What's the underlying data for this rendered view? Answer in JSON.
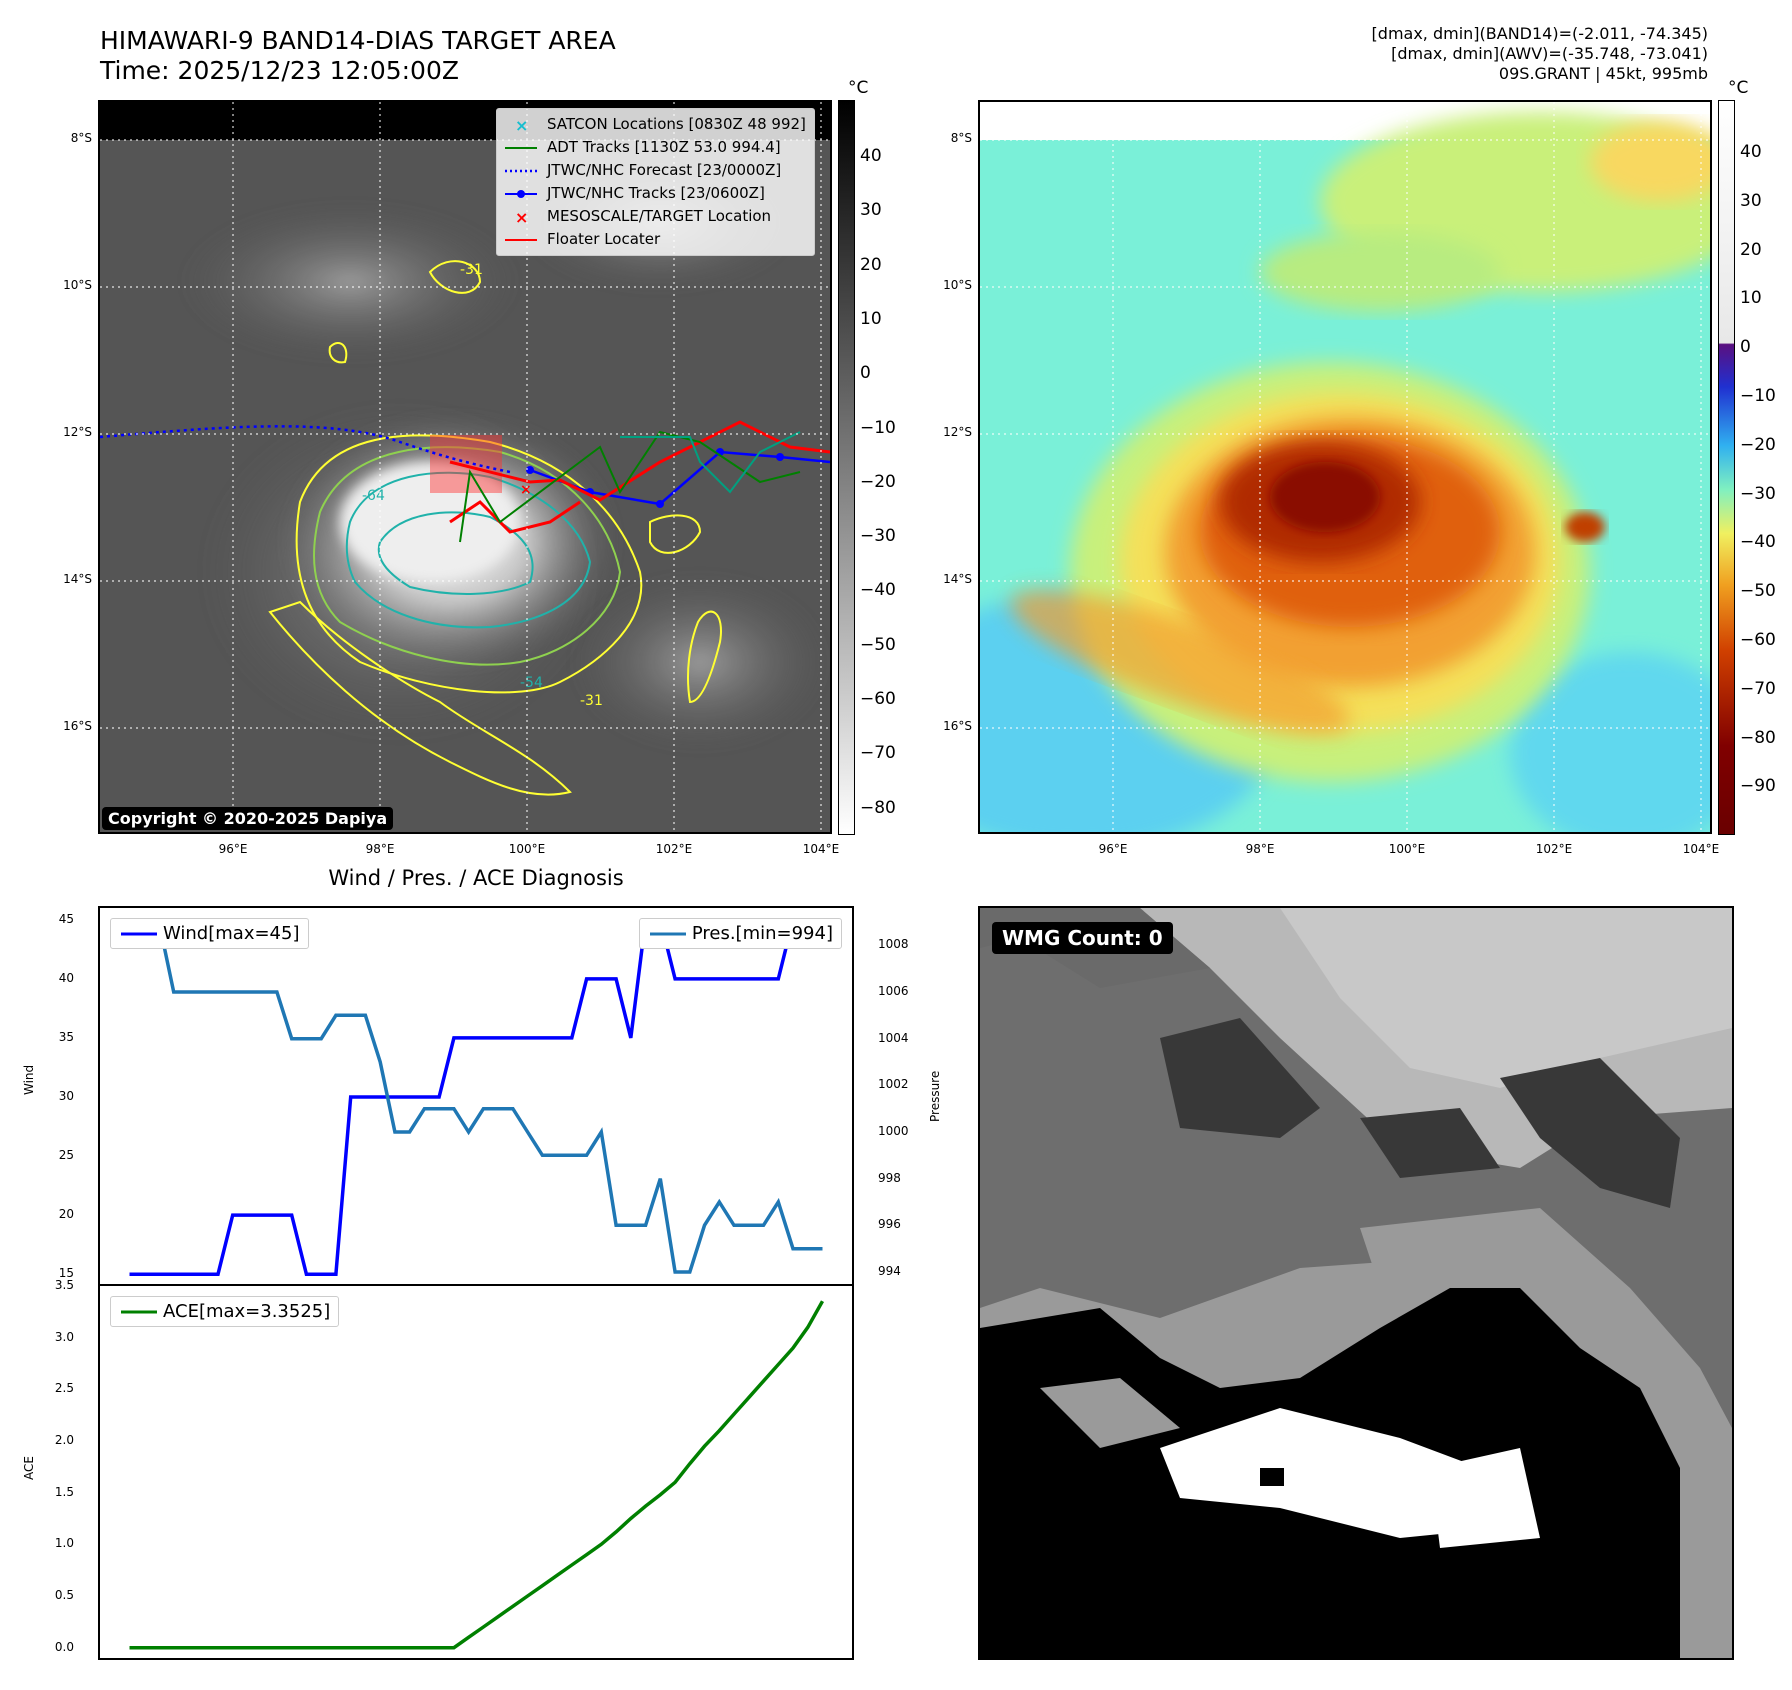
{
  "header": {
    "title_line1": "HIMAWARI-9 BAND14-DIAS TARGET AREA",
    "title_line2": "Time: 2025/12/23 12:05:00Z",
    "info_line1": "[dmax, dmin](BAND14)=(-2.011, -74.345)",
    "info_line2": "[dmax, dmin](AWV)=(-35.748, -73.041)",
    "info_line3": "09S.GRANT | 45kt, 995mb"
  },
  "map": {
    "lat_labels": [
      "8°S",
      "10°S",
      "12°S",
      "14°S",
      "16°S"
    ],
    "lon_labels": [
      "96°E",
      "98°E",
      "100°E",
      "102°E",
      "104°E"
    ],
    "copyright": "Copyright © 2020-2025 Dapiya",
    "unit": "°C",
    "colorbar1_ticks": [
      "40",
      "30",
      "20",
      "10",
      "0",
      "−10",
      "−20",
      "−30",
      "−40",
      "−50",
      "−60",
      "−70",
      "−80"
    ],
    "colorbar2_ticks": [
      "40",
      "30",
      "20",
      "10",
      "0",
      "−10",
      "−20",
      "−30",
      "−40",
      "−50",
      "−60",
      "−70",
      "−80",
      "−90"
    ],
    "contour_labels": [
      "-64",
      "-31",
      "-54",
      "-31"
    ],
    "legend": [
      {
        "label": "SATCON Locations [0830Z 48 992]",
        "color": "#17becf"
      },
      {
        "label": "ADT Tracks [1130Z 53.0 994.4]",
        "color": "#008000"
      },
      {
        "label": "JTWC/NHC Forecast [23/0000Z]",
        "color": "#0000ff"
      },
      {
        "label": "JTWC/NHC Tracks [23/0600Z]",
        "color": "#0000ff"
      },
      {
        "label": "MESOSCALE/TARGET Location",
        "color": "#ff0000"
      },
      {
        "label": "Floater Locater",
        "color": "#ff0000"
      }
    ]
  },
  "wmg": {
    "badge": "WMG Count: 0"
  },
  "chart_data": [
    {
      "type": "line",
      "title": "Wind / Pres. / ACE Diagnosis",
      "ylabel": "Wind",
      "ylabel_right": "Pressure",
      "ylim": [
        14,
        46
      ],
      "ylim_right": [
        993.4,
        1009.6
      ],
      "y_ticks": [
        "45",
        "40",
        "35",
        "30",
        "25",
        "20",
        "15"
      ],
      "y_ticks_right": [
        "1008",
        "1006",
        "1004",
        "1002",
        "1000",
        "998",
        "996",
        "994"
      ],
      "x": [
        0,
        1,
        2,
        3,
        4,
        5,
        6,
        7,
        8,
        9,
        10,
        11,
        12,
        13,
        14,
        15,
        16,
        17,
        18,
        19,
        20,
        21,
        22,
        23,
        24,
        25,
        26,
        27,
        28,
        29,
        30,
        31,
        32,
        33,
        34,
        35,
        36,
        37,
        38,
        39,
        40,
        41,
        42,
        43,
        44,
        45,
        46,
        47
      ],
      "series": [
        {
          "name": "Wind[max=45]",
          "color": "#0000ff",
          "values": [
            15,
            15,
            15,
            15,
            15,
            15,
            15,
            20,
            20,
            20,
            20,
            20,
            15,
            15,
            15,
            30,
            30,
            30,
            30,
            30,
            30,
            30,
            35,
            35,
            35,
            35,
            35,
            35,
            35,
            35,
            35,
            40,
            40,
            40,
            35,
            45,
            45,
            40,
            40,
            40,
            40,
            40,
            40,
            40,
            40,
            45,
            45,
            45
          ],
          "axis": "left"
        },
        {
          "name": "Pres.[min=994]",
          "color": "#1f77b4",
          "values": [
            1009,
            1009,
            1009,
            1006,
            1006,
            1006,
            1006,
            1006,
            1006,
            1006,
            1006,
            1004,
            1004,
            1004,
            1005,
            1005,
            1005,
            1003,
            1000,
            1000,
            1001,
            1001,
            1001,
            1000,
            1001,
            1001,
            1001,
            1000,
            999,
            999,
            999,
            999,
            1000,
            996,
            996,
            996,
            998,
            994,
            994,
            996,
            997,
            996,
            996,
            996,
            997,
            995,
            995,
            995
          ],
          "axis": "right"
        }
      ],
      "legend_placement": "top"
    },
    {
      "type": "line",
      "ylabel": "ACE",
      "ylim": [
        -0.1,
        3.5
      ],
      "y_ticks": [
        "3.5",
        "3.0",
        "2.5",
        "2.0",
        "1.5",
        "1.0",
        "0.5",
        "0.0"
      ],
      "x": [
        0,
        1,
        2,
        3,
        4,
        5,
        6,
        7,
        8,
        9,
        10,
        11,
        12,
        13,
        14,
        15,
        16,
        17,
        18,
        19,
        20,
        21,
        22,
        23,
        24,
        25,
        26,
        27,
        28,
        29,
        30,
        31,
        32,
        33,
        34,
        35,
        36,
        37,
        38,
        39,
        40,
        41,
        42,
        43,
        44,
        45,
        46,
        47
      ],
      "series": [
        {
          "name": "ACE[max=3.3525]",
          "color": "#008000",
          "values": [
            0,
            0,
            0,
            0,
            0,
            0,
            0,
            0,
            0,
            0,
            0,
            0,
            0,
            0,
            0,
            0,
            0,
            0,
            0,
            0,
            0,
            0,
            0,
            0.1,
            0.2,
            0.3,
            0.4,
            0.5,
            0.6,
            0.7,
            0.8,
            0.9,
            1.0,
            1.12,
            1.25,
            1.37,
            1.48,
            1.6,
            1.78,
            1.95,
            2.1,
            2.26,
            2.42,
            2.58,
            2.74,
            2.9,
            3.1,
            3.3525
          ]
        }
      ],
      "legend_placement": "top-left"
    }
  ]
}
